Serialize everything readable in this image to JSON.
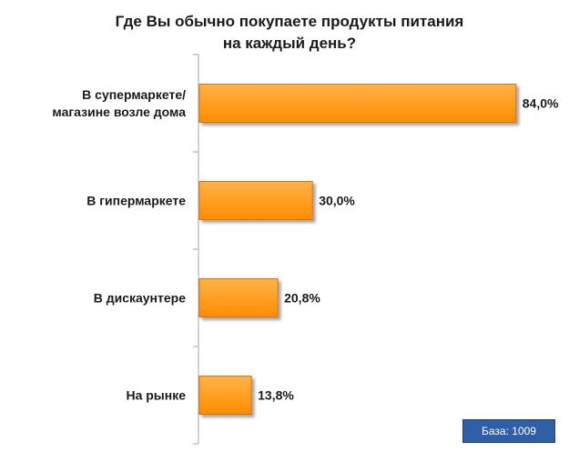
{
  "chart_data": {
    "type": "bar",
    "orientation": "horizontal",
    "title": "Где Вы обычно покупаете продукты питания на каждый день?",
    "title_lines": [
      "Где Вы обычно покупаете продукты питания",
      "на каждый день?"
    ],
    "categories": [
      [
        "В супермаркете/",
        "магазине возле дома"
      ],
      [
        "В гипермаркете"
      ],
      [
        "В дискаунтере"
      ],
      [
        "На рынке"
      ]
    ],
    "values": [
      84.0,
      30.0,
      20.8,
      13.8
    ],
    "value_labels": [
      "84,0%",
      "30,0%",
      "20,8%",
      "13,8%"
    ],
    "xlim": [
      0,
      100
    ],
    "grid": false,
    "colors": {
      "bar_top": "#ffb347",
      "bar_bottom": "#ff8c00",
      "bar_edge": "#d9730b",
      "axis": "#a6a6a6"
    }
  },
  "footer": {
    "base_label": "База: 1009"
  }
}
